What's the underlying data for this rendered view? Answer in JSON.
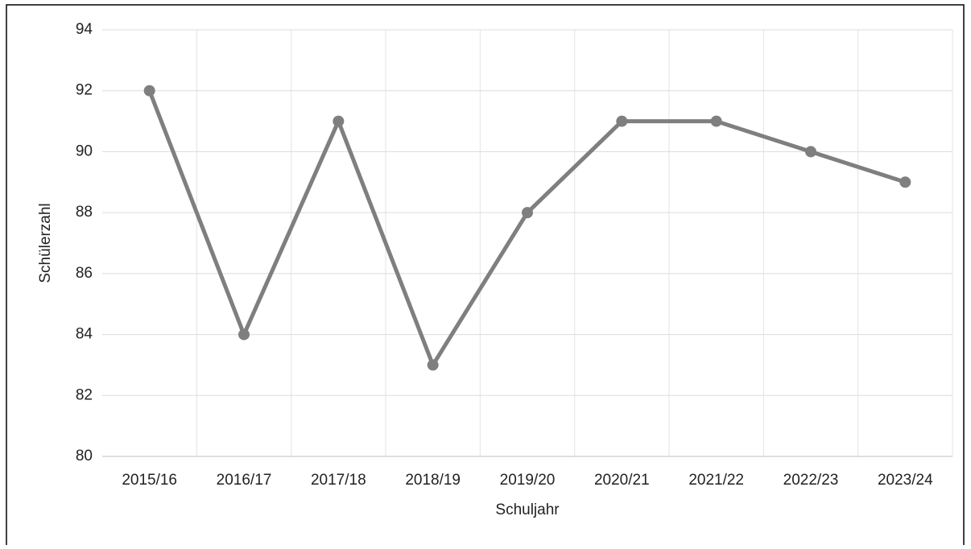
{
  "chart_data": {
    "type": "line",
    "categories": [
      "2015/16",
      "2016/17",
      "2017/18",
      "2018/19",
      "2019/20",
      "2020/21",
      "2021/22",
      "2022/23",
      "2023/24"
    ],
    "series": [
      {
        "name": "Schülerzahl",
        "color": "#7f7f7f",
        "values": [
          92,
          84,
          91,
          83,
          88,
          91,
          91,
          90,
          89
        ]
      }
    ],
    "ylim": [
      80,
      94
    ],
    "yticks": [
      80,
      82,
      84,
      86,
      88,
      90,
      92,
      94
    ],
    "xlabel": "Schuljahr",
    "ylabel": "Schülerzahl",
    "grid": true
  }
}
